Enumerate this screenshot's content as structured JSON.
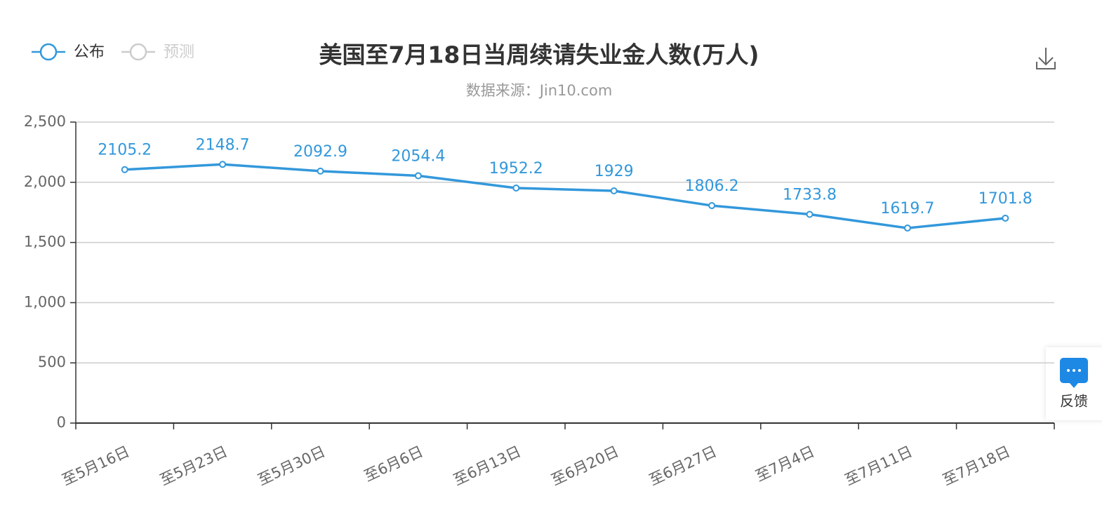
{
  "chart_data": {
    "type": "line",
    "title": "美国至7月18日当周续请失业金人数(万人)",
    "subtitle": "数据来源：Jin10.com",
    "categories": [
      "至5月16日",
      "至5月23日",
      "至5月30日",
      "至6月6日",
      "至6月13日",
      "至6月20日",
      "至6月27日",
      "至7月4日",
      "至7月11日",
      "至7月18日"
    ],
    "series": [
      {
        "name": "公布",
        "color": "#3398db",
        "values": [
          2105.2,
          2148.7,
          2092.9,
          2054.4,
          1952.2,
          1929,
          1806.2,
          1733.8,
          1619.7,
          1701.8
        ]
      },
      {
        "name": "预测",
        "color": "#cccccc",
        "values": [
          null,
          null,
          null,
          null,
          null,
          null,
          null,
          null,
          null,
          null
        ]
      }
    ],
    "ylim": [
      0,
      2500
    ],
    "yticks": [
      0,
      500,
      {
        "value": 1000,
        "label": "1,000"
      },
      {
        "value": 1500,
        "label": "1,500"
      },
      {
        "value": 2000,
        "label": "2,000"
      },
      {
        "value": 2500,
        "label": "2,500"
      }
    ],
    "grid": true
  },
  "ui": {
    "feedback": "反馈"
  }
}
